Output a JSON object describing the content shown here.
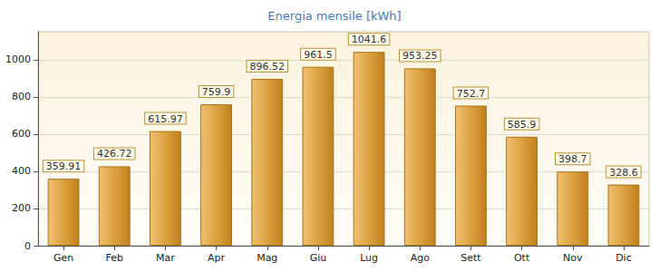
{
  "chart_data": {
    "type": "bar",
    "title": "Energia mensile [kWh]",
    "categories": [
      "Gen",
      "Feb",
      "Mar",
      "Apr",
      "Mag",
      "Giu",
      "Lug",
      "Ago",
      "Sett",
      "Ott",
      "Nov",
      "Dic"
    ],
    "values": [
      359.91,
      426.72,
      615.97,
      759.9,
      896.52,
      961.5,
      1041.6,
      953.25,
      752.7,
      585.9,
      398.7,
      328.6
    ],
    "color": "#dca241",
    "ylim": [
      0,
      1150
    ],
    "yticks": [
      0,
      200,
      400,
      600,
      800,
      1000
    ],
    "grid": true,
    "data_labels": true
  }
}
